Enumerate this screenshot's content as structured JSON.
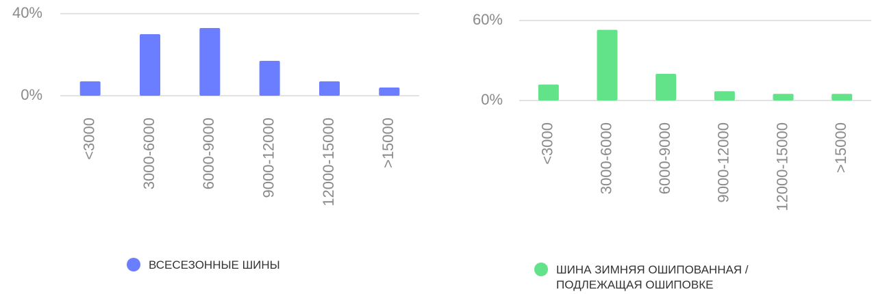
{
  "chart_data": [
    {
      "type": "bar",
      "categories": [
        "<3000",
        "3000-6000",
        "6000-9000",
        "9000-12000",
        "12000-15000",
        ">15000"
      ],
      "series": [
        {
          "name": "ВСЕСЕЗОННЫЕ ШИНЫ",
          "color": "#6b7eff",
          "values": [
            7,
            30,
            33,
            17,
            7,
            4
          ]
        }
      ],
      "ylim": [
        0,
        40
      ],
      "yticks": [
        {
          "value": 0,
          "label": "0%"
        },
        {
          "value": 40,
          "label": "40%"
        }
      ],
      "grid": true
    },
    {
      "type": "bar",
      "categories": [
        "<3000",
        "3000-6000",
        "6000-9000",
        "9000-12000",
        "12000-15000",
        ">15000"
      ],
      "series": [
        {
          "name": "ШИНА ЗИМНЯЯ ОШИПОВАННАЯ / ПОДЛЕЖАЩАЯ ОШИПОВКЕ",
          "color": "#62e38a",
          "values": [
            12,
            53,
            20,
            7,
            5,
            5
          ]
        }
      ],
      "ylim": [
        0,
        60
      ],
      "yticks": [
        {
          "value": 0,
          "label": "0%"
        },
        {
          "value": 60,
          "label": "60%"
        }
      ],
      "grid": true
    }
  ]
}
